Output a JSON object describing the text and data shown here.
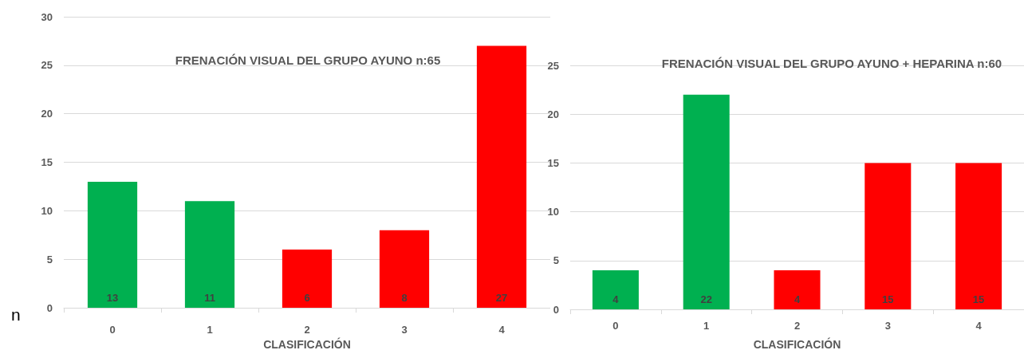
{
  "chart_data": [
    {
      "type": "bar",
      "title": "FRENACIÓN VISUAL DEL GRUPO AYUNO n:65",
      "xlabel": "CLASIFICACIÓN",
      "ylabel": "n",
      "categories": [
        "0",
        "1",
        "2",
        "3",
        "4"
      ],
      "values": [
        13,
        11,
        6,
        8,
        27
      ],
      "colors": [
        "#00b050",
        "#00b050",
        "#ff0000",
        "#ff0000",
        "#ff0000"
      ],
      "ylim": [
        0,
        30
      ],
      "yticks": [
        0,
        5,
        10,
        15,
        20,
        25,
        30
      ],
      "grid": "y",
      "data_labels": true
    },
    {
      "type": "bar",
      "title": "FRENACIÓN VISUAL DEL GRUPO AYUNO + HEPARINA n:60",
      "xlabel": "CLASIFICACIÓN",
      "categories": [
        "0",
        "1",
        "2",
        "3",
        "4"
      ],
      "values": [
        4,
        22,
        4,
        15,
        15
      ],
      "colors": [
        "#00b050",
        "#00b050",
        "#ff0000",
        "#ff0000",
        "#ff0000"
      ],
      "ylim": [
        0,
        25
      ],
      "yticks": [
        0,
        5,
        10,
        15,
        20,
        25
      ],
      "grid": "y",
      "data_labels": true
    }
  ]
}
